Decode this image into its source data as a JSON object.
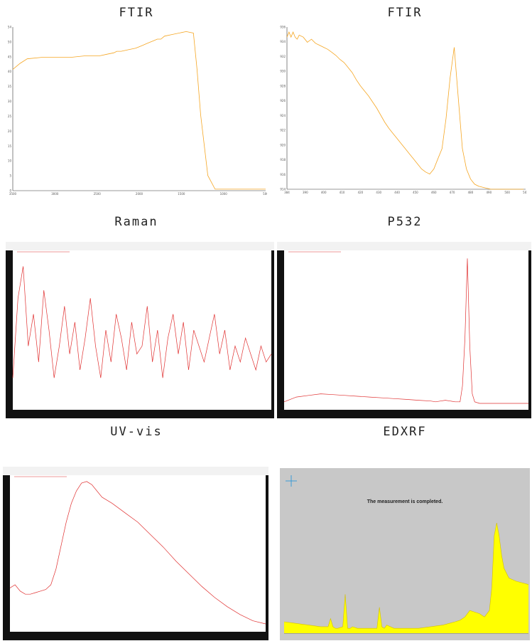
{
  "titles": {
    "ftir1": "FTIR",
    "ftir2": "FTIR",
    "raman": "Raman",
    "p532": "P532",
    "uvvis": "UV-vis",
    "edxrf": "EDXRF"
  },
  "edxrf_status": "The measurement is completed.",
  "colors": {
    "ftir": "#f5a623",
    "spectra": "#e03030",
    "edxrf_fill": "#ffff00",
    "edxrf_bg": "#c8c8c8"
  },
  "chart_data": [
    {
      "id": "ftir1",
      "type": "line",
      "x": [
        4000,
        3900,
        3800,
        3600,
        3400,
        3200,
        3000,
        2800,
        2700,
        2600,
        2560,
        2500,
        2400,
        2300,
        2250,
        2200,
        2150,
        2100,
        2050,
        2000,
        1950,
        1900,
        1800,
        1600,
        1500,
        1450,
        1400,
        1300,
        1200,
        1100,
        1000,
        900,
        800,
        700,
        600,
        500
      ],
      "y": [
        40,
        42,
        43.5,
        44,
        44,
        44,
        44.5,
        44.5,
        45,
        45.5,
        46,
        46,
        46.5,
        47,
        47.5,
        48,
        48.5,
        49,
        49.5,
        50,
        50,
        51,
        51.5,
        52.5,
        52,
        40,
        25,
        5,
        0.5,
        0.5,
        0.5,
        0.5,
        0.5,
        0.5,
        0.5,
        0.5
      ],
      "xlim": [
        4000,
        500
      ],
      "ylim": [
        0,
        54
      ],
      "xticks": [
        "3500",
        "3000",
        "2500",
        "2000",
        "1500",
        "1000",
        "500"
      ],
      "yticks": [
        "54",
        "50",
        "45",
        "40",
        "35",
        "30",
        "25",
        "20",
        "15",
        "10",
        "5",
        "0"
      ]
    },
    {
      "id": "ftir2",
      "type": "line",
      "x": [
        384,
        385,
        386,
        387,
        388,
        389,
        390,
        392,
        394,
        396,
        398,
        400,
        402,
        404,
        406,
        408,
        410,
        412,
        414,
        416,
        418,
        420,
        422,
        424,
        426,
        428,
        430,
        432,
        434,
        436,
        438,
        440,
        442,
        444,
        446,
        448,
        450,
        452,
        454,
        456,
        458,
        460,
        462,
        464,
        466,
        468,
        470,
        472,
        474,
        476,
        478,
        480,
        482,
        484,
        486,
        488,
        490,
        492,
        494,
        496,
        498,
        500
      ],
      "y": [
        0.93,
        0.935,
        0.93,
        0.935,
        0.93,
        0.928,
        0.932,
        0.93,
        0.925,
        0.928,
        0.924,
        0.922,
        0.92,
        0.918,
        0.915,
        0.912,
        0.908,
        0.905,
        0.9,
        0.895,
        0.888,
        0.882,
        0.877,
        0.872,
        0.866,
        0.86,
        0.853,
        0.846,
        0.84,
        0.835,
        0.83,
        0.825,
        0.82,
        0.815,
        0.81,
        0.805,
        0.8,
        0.797,
        0.795,
        0.8,
        0.81,
        0.82,
        0.85,
        0.89,
        0.92,
        0.87,
        0.82,
        0.8,
        0.79,
        0.785,
        0.783,
        0.782,
        0.781,
        0.78,
        0.78,
        0.78,
        0.78,
        0.78,
        0.78,
        0.78,
        0.78,
        0.78
      ],
      "xlim": [
        384,
        501
      ],
      "ylim": [
        0.78,
        0.94
      ],
      "xticks": [
        "384",
        "390",
        "400",
        "410",
        "420",
        "430",
        "440",
        "450",
        "460",
        "470",
        "480",
        "490",
        "500",
        "501"
      ],
      "yticks": [
        "0.936",
        "0.934",
        "0.932",
        "0.930",
        "0.928",
        "0.926",
        "0.924",
        "0.922",
        "0.920",
        "0.918",
        "0.916",
        "0.914"
      ]
    },
    {
      "id": "raman",
      "type": "line",
      "x": [
        0,
        2,
        4,
        6,
        8,
        10,
        12,
        14,
        16,
        18,
        20,
        22,
        24,
        26,
        28,
        30,
        32,
        34,
        36,
        38,
        40,
        42,
        44,
        46,
        48,
        50,
        52,
        54,
        56,
        58,
        60,
        62,
        64,
        66,
        68,
        70,
        72,
        74,
        76,
        78,
        80,
        82,
        84,
        86,
        88,
        90,
        92,
        94,
        96,
        98,
        100
      ],
      "y": [
        20,
        70,
        90,
        40,
        60,
        30,
        75,
        50,
        20,
        40,
        65,
        35,
        55,
        25,
        45,
        70,
        40,
        20,
        50,
        30,
        60,
        45,
        25,
        55,
        35,
        40,
        65,
        30,
        50,
        20,
        45,
        60,
        35,
        55,
        25,
        50,
        40,
        30,
        45,
        60,
        35,
        50,
        25,
        40,
        30,
        45,
        35,
        25,
        40,
        30,
        35
      ],
      "xlim": [
        0,
        100
      ],
      "ylim": [
        0,
        100
      ],
      "xticks": [],
      "yticks": []
    },
    {
      "id": "p532",
      "type": "line",
      "x": [
        0,
        5,
        10,
        15,
        20,
        25,
        30,
        35,
        40,
        45,
        50,
        55,
        60,
        62,
        64,
        66,
        68,
        70,
        72,
        73,
        74,
        75,
        76,
        77,
        78,
        80,
        85,
        90,
        95,
        100
      ],
      "y": [
        5,
        8,
        9,
        10,
        9.5,
        9,
        8.5,
        8,
        7.5,
        7,
        6.5,
        6,
        5.5,
        5,
        5.5,
        6,
        5.5,
        5,
        5,
        15,
        45,
        95,
        40,
        10,
        5,
        4,
        4,
        4,
        4,
        4
      ],
      "xlim": [
        0,
        100
      ],
      "ylim": [
        0,
        100
      ],
      "xticks": [],
      "yticks": []
    },
    {
      "id": "uvvis",
      "type": "line",
      "x": [
        0,
        2,
        4,
        6,
        8,
        10,
        12,
        14,
        16,
        18,
        20,
        22,
        24,
        26,
        28,
        30,
        32,
        34,
        36,
        38,
        40,
        45,
        50,
        55,
        60,
        65,
        70,
        75,
        80,
        85,
        90,
        95,
        100
      ],
      "y": [
        28,
        30,
        26,
        24,
        24,
        25,
        26,
        27,
        30,
        40,
        55,
        70,
        82,
        90,
        95,
        96,
        94,
        90,
        86,
        84,
        82,
        76,
        70,
        62,
        54,
        45,
        37,
        29,
        22,
        16,
        11,
        7,
        5
      ],
      "xlim": [
        0,
        100
      ],
      "ylim": [
        0,
        100
      ],
      "xticks": [],
      "yticks": []
    },
    {
      "id": "edxrf",
      "type": "area",
      "x": [
        0,
        5,
        10,
        15,
        18,
        19,
        20,
        21,
        22,
        24,
        25,
        26,
        27,
        28,
        30,
        35,
        38,
        39,
        40,
        41,
        42,
        45,
        50,
        55,
        60,
        65,
        70,
        72,
        74,
        76,
        78,
        80,
        82,
        84,
        85,
        86,
        87,
        88,
        89,
        90,
        92,
        95,
        100
      ],
      "y": [
        7,
        6,
        5,
        4,
        4,
        9,
        4,
        3,
        3,
        4,
        24,
        3,
        3,
        4,
        3,
        3,
        3,
        16,
        4,
        3,
        5,
        3,
        3,
        3,
        4,
        5,
        7,
        8,
        10,
        14,
        13,
        12,
        10,
        14,
        28,
        60,
        68,
        60,
        48,
        40,
        34,
        32,
        30
      ],
      "xlim": [
        0,
        100
      ],
      "ylim": [
        0,
        100
      ],
      "xticks": [],
      "yticks": []
    }
  ]
}
